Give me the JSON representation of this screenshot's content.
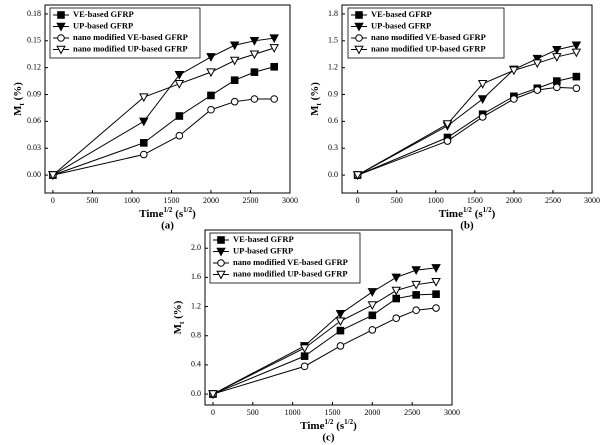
{
  "chart_data": [
    {
      "type": "line",
      "panel_label": "(a)",
      "x_label": [
        {
          "text": "Time"
        },
        {
          "text": "1/2",
          "sup": true
        },
        {
          "text": " (s"
        },
        {
          "text": "1/2",
          "sup": true
        },
        {
          "text": ")"
        }
      ],
      "y_label": [
        {
          "text": "M"
        },
        {
          "text": "t",
          "sub": true
        },
        {
          "text": " (%)"
        }
      ],
      "x": [
        0,
        1150,
        1600,
        2000,
        2300,
        2550,
        2800
      ],
      "xlim": [
        -100,
        3000
      ],
      "xticks": [
        0,
        500,
        1000,
        1500,
        2000,
        2500,
        3000
      ],
      "ylim": [
        -0.02,
        0.19
      ],
      "yticks": [
        {
          "value": 0,
          "label": "0.00"
        },
        0.03,
        0.06,
        0.09,
        0.12,
        0.15,
        0.18
      ],
      "legend": "upper left",
      "series": [
        {
          "name": "VE-based GFRP",
          "color": "#000000",
          "marker": "square",
          "filled": true,
          "values": [
            0,
            0.036,
            0.066,
            0.089,
            0.106,
            0.115,
            0.121
          ]
        },
        {
          "name": "UP-based GFRP",
          "color": "#000000",
          "marker": "triangle-down",
          "filled": true,
          "values": [
            0,
            0.06,
            0.112,
            0.132,
            0.145,
            0.15,
            0.153
          ]
        },
        {
          "name": "nano modified VE-based GFRP",
          "color": "#000000",
          "marker": "circle",
          "filled": false,
          "values": [
            0,
            0.023,
            0.044,
            0.073,
            0.082,
            0.085,
            0.085
          ]
        },
        {
          "name": "nano modified UP-based GFRP",
          "color": "#000000",
          "marker": "triangle-down",
          "filled": false,
          "values": [
            0,
            0.087,
            0.102,
            0.115,
            0.128,
            0.135,
            0.142
          ]
        }
      ]
    },
    {
      "type": "line",
      "panel_label": "(b)",
      "x_label": [
        {
          "text": "Time"
        },
        {
          "text": "1/2",
          "sup": true
        },
        {
          "text": " (s"
        },
        {
          "text": "1/2",
          "sup": true
        },
        {
          "text": ")"
        }
      ],
      "y_label": [
        {
          "text": "M"
        },
        {
          "text": "t",
          "sub": true
        },
        {
          "text": " (%)"
        }
      ],
      "x": [
        0,
        1150,
        1600,
        2000,
        2300,
        2550,
        2800
      ],
      "xlim": [
        -200,
        3000
      ],
      "xticks": [
        0,
        500,
        1000,
        1500,
        2000,
        2500,
        3000
      ],
      "ylim": [
        -0.2,
        1.9
      ],
      "yticks": [
        {
          "value": 0,
          "label": "0.0"
        },
        0.3,
        0.6,
        0.9,
        1.2,
        1.5,
        1.8
      ],
      "legend": "upper left",
      "series": [
        {
          "name": "VE-based GFRP",
          "color": "#000000",
          "marker": "square",
          "filled": true,
          "values": [
            0,
            0.42,
            0.68,
            0.88,
            0.97,
            1.05,
            1.1
          ]
        },
        {
          "name": "UP-based GFRP",
          "color": "#000000",
          "marker": "triangle-down",
          "filled": true,
          "values": [
            0,
            0.55,
            0.85,
            1.18,
            1.3,
            1.4,
            1.45
          ]
        },
        {
          "name": "nano modified VE-based GFRP",
          "color": "#000000",
          "marker": "circle",
          "filled": false,
          "values": [
            0,
            0.38,
            0.65,
            0.85,
            0.95,
            0.98,
            0.97
          ]
        },
        {
          "name": "nano modified UP-based GFRP",
          "color": "#000000",
          "marker": "triangle-down",
          "filled": false,
          "values": [
            0,
            0.57,
            1.02,
            1.17,
            1.25,
            1.32,
            1.37
          ]
        }
      ]
    },
    {
      "type": "line",
      "panel_label": "(c)",
      "x_label": [
        {
          "text": "Time"
        },
        {
          "text": "1/2",
          "sup": true
        },
        {
          "text": " (s"
        },
        {
          "text": "1/2",
          "sup": true
        },
        {
          "text": ")"
        }
      ],
      "y_label": [
        {
          "text": "M"
        },
        {
          "text": "t",
          "sub": true
        },
        {
          "text": " (%)"
        }
      ],
      "x": [
        0,
        1150,
        1600,
        2000,
        2300,
        2550,
        2800
      ],
      "xlim": [
        -100,
        3000
      ],
      "xticks": [
        0,
        500,
        1000,
        1500,
        2000,
        2500,
        3000
      ],
      "ylim": [
        -0.15,
        2.25
      ],
      "yticks": [
        {
          "value": 0,
          "label": "0.0"
        },
        0.4,
        0.8,
        1.2,
        1.6,
        {
          "value": 2,
          "label": "2.0"
        }
      ],
      "legend": "upper left",
      "series": [
        {
          "name": "VE-based GFRP",
          "color": "#000000",
          "marker": "square",
          "filled": true,
          "values": [
            0,
            0.52,
            0.87,
            1.08,
            1.31,
            1.36,
            1.37
          ]
        },
        {
          "name": "UP-based GFRP",
          "color": "#000000",
          "marker": "triangle-down",
          "filled": true,
          "values": [
            0,
            0.66,
            1.1,
            1.4,
            1.6,
            1.7,
            1.73
          ]
        },
        {
          "name": "nano modified VE-based GFRP",
          "color": "#000000",
          "marker": "circle",
          "filled": false,
          "values": [
            0,
            0.38,
            0.66,
            0.88,
            1.04,
            1.15,
            1.18
          ]
        },
        {
          "name": "nano modified UP-based GFRP",
          "color": "#000000",
          "marker": "triangle-down",
          "filled": false,
          "values": [
            0,
            0.63,
            1.0,
            1.22,
            1.42,
            1.5,
            1.54
          ]
        }
      ]
    }
  ]
}
